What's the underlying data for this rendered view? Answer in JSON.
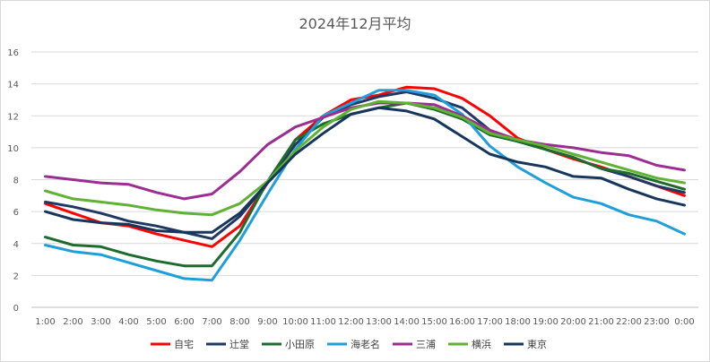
{
  "chart_data": {
    "type": "line",
    "title": "2024年12月平均",
    "xlabel": "",
    "ylabel": "",
    "ylim": [
      0,
      16
    ],
    "yticks": [
      0,
      2,
      4,
      6,
      8,
      10,
      12,
      14,
      16
    ],
    "grid": true,
    "legend_position": "bottom",
    "categories": [
      "1:00",
      "2:00",
      "3:00",
      "4:00",
      "5:00",
      "6:00",
      "7:00",
      "8:00",
      "9:00",
      "10:00",
      "11:00",
      "12:00",
      "13:00",
      "14:00",
      "15:00",
      "16:00",
      "17:00",
      "18:00",
      "19:00",
      "20:00",
      "21:00",
      "22:00",
      "23:00",
      "0:00"
    ],
    "series": [
      {
        "name": "自宅",
        "color": "#ff0000",
        "values": [
          6.5,
          5.9,
          5.3,
          5.1,
          4.6,
          4.2,
          3.8,
          5.1,
          7.8,
          10.5,
          12.0,
          13.0,
          13.3,
          13.8,
          13.7,
          13.1,
          12.0,
          10.6,
          9.9,
          9.3,
          8.8,
          8.2,
          7.6,
          7.0
        ]
      },
      {
        "name": "辻堂",
        "color": "#203864",
        "values": [
          6.6,
          6.3,
          5.9,
          5.4,
          5.1,
          4.7,
          4.3,
          5.7,
          7.8,
          10.2,
          11.9,
          12.7,
          13.2,
          13.5,
          13.1,
          12.5,
          11.1,
          10.4,
          9.9,
          9.4,
          8.7,
          8.2,
          7.6,
          7.2
        ]
      },
      {
        "name": "小田原",
        "color": "#1e6b2e",
        "values": [
          4.4,
          3.9,
          3.8,
          3.3,
          2.9,
          2.6,
          2.6,
          4.7,
          7.9,
          10.5,
          11.5,
          12.1,
          12.5,
          12.8,
          12.4,
          11.8,
          10.8,
          10.4,
          9.9,
          9.4,
          8.7,
          8.4,
          7.9,
          7.4
        ]
      },
      {
        "name": "海老名",
        "color": "#1f9fd9",
        "values": [
          3.9,
          3.5,
          3.3,
          2.8,
          2.3,
          1.8,
          1.7,
          4.2,
          7.1,
          9.9,
          12.0,
          12.8,
          13.6,
          13.6,
          13.3,
          12.1,
          10.1,
          8.8,
          7.8,
          6.9,
          6.5,
          5.8,
          5.4,
          4.6
        ]
      },
      {
        "name": "三浦",
        "color": "#9b2d93",
        "values": [
          8.2,
          8.0,
          7.8,
          7.7,
          7.2,
          6.8,
          7.1,
          8.5,
          10.2,
          11.3,
          11.9,
          12.5,
          12.8,
          12.8,
          12.7,
          12.0,
          11.1,
          10.5,
          10.2,
          10.0,
          9.7,
          9.5,
          8.9,
          8.6
        ]
      },
      {
        "name": "横浜",
        "color": "#5fb233",
        "values": [
          7.3,
          6.8,
          6.6,
          6.4,
          6.1,
          5.9,
          5.8,
          6.5,
          7.9,
          9.8,
          11.3,
          12.4,
          12.9,
          12.8,
          12.5,
          11.9,
          10.9,
          10.5,
          10.1,
          9.6,
          9.1,
          8.6,
          8.1,
          7.8
        ]
      },
      {
        "name": "東京",
        "color": "#16365c",
        "values": [
          6.0,
          5.5,
          5.3,
          5.2,
          4.8,
          4.7,
          4.7,
          5.9,
          7.8,
          9.6,
          10.9,
          12.1,
          12.5,
          12.3,
          11.8,
          10.7,
          9.6,
          9.1,
          8.8,
          8.2,
          8.1,
          7.4,
          6.8,
          6.4
        ]
      }
    ]
  }
}
